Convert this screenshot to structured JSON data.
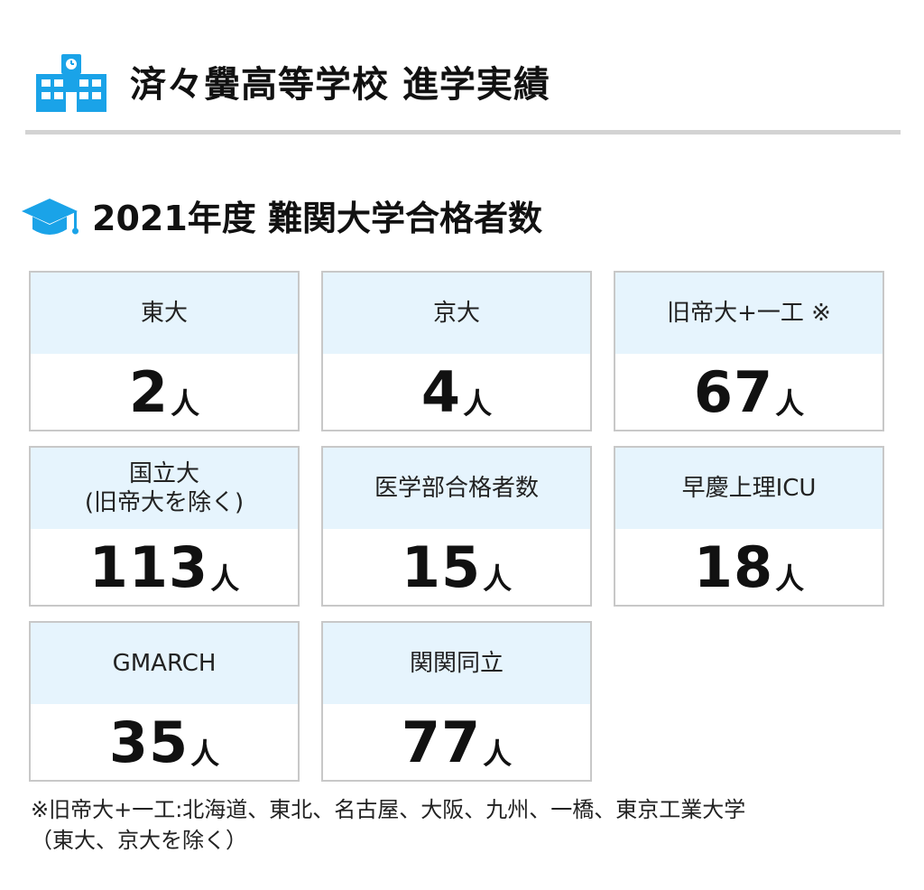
{
  "header": {
    "title": "済々黌高等学校 進学実績",
    "icon": "school-building-icon",
    "accent_color": "#1aa3e8"
  },
  "section": {
    "title": "2021年度 難関大学合格者数",
    "icon": "graduation-cap-icon"
  },
  "unit": "人",
  "cards": [
    {
      "label": "東大",
      "value": "2"
    },
    {
      "label": "京大",
      "value": "4"
    },
    {
      "label": "旧帝大+一工 ※",
      "value": "67"
    },
    {
      "label": "国立大\n(旧帝大を除く)",
      "value": "113"
    },
    {
      "label": "医学部合格者数",
      "value": "15"
    },
    {
      "label": "早慶上理ICU",
      "value": "18"
    },
    {
      "label": "GMARCH",
      "value": "35"
    },
    {
      "label": "関関同立",
      "value": "77"
    }
  ],
  "note": {
    "line1": "※旧帝大+一工:北海道、東北、名古屋、大阪、九州、一橋、東京工業大学",
    "line2": "（東大、京大を除く）"
  }
}
